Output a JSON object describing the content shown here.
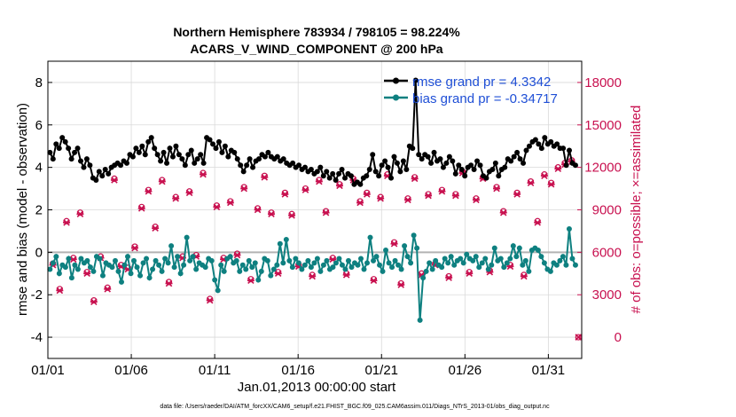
{
  "chart_data": {
    "type": "line",
    "title": "Northern Hemisphere 783934 / 798105 = 98.224%",
    "subtitle": "ACARS_V_WIND_COMPONENT @ 200 hPa",
    "xlabel": "Jan.01,2013 00:00:00 start",
    "ylabel": "rmse and bias (model - observation)",
    "y2label": "# of obs: o=possible; ×=assimilated",
    "footnote": "data file: /Users/raeder/DAI/ATM_forcXX/CAM6_setup/f.e21.FHIST_BGC.f09_025.CAM6assim.011/Diags_NTrS_2013-01/obs_diag_output.nc",
    "xlim": [
      0,
      32
    ],
    "ylim": [
      -5,
      9
    ],
    "y2lim": [
      -1500,
      19500
    ],
    "x_ticks": [
      0,
      5,
      10,
      15,
      20,
      25,
      30
    ],
    "x_tick_labels": [
      "01/01",
      "01/06",
      "01/11",
      "01/16",
      "01/21",
      "01/26",
      "01/31"
    ],
    "y_ticks": [
      -4,
      -2,
      0,
      2,
      4,
      6,
      8
    ],
    "y_tick_labels": [
      "-4",
      "-2",
      "0",
      "2",
      "4",
      "6",
      "8"
    ],
    "y2_ticks": [
      0,
      3000,
      6000,
      9000,
      12000,
      15000,
      18000
    ],
    "y2_tick_labels": [
      "0",
      "3000",
      "6000",
      "9000",
      "12000",
      "15000",
      "18000"
    ],
    "grid": true,
    "legend_position": "top-right",
    "colors": {
      "rmse": "#000000",
      "bias": "#0e8080",
      "obs": "#c8104f",
      "zero_line": "#b3b3b3",
      "grid": "#d9d9d9",
      "legend_text": "#1f4fd6"
    },
    "step_days": 0.25,
    "series": [
      {
        "name": "rmse grand pr = 4.3342",
        "axis": "left",
        "values": [
          4.7,
          4.4,
          5.1,
          4.9,
          5.4,
          5.2,
          4.9,
          4.4,
          4.7,
          4.9,
          4.3,
          4.0,
          4.4,
          4.1,
          3.5,
          3.4,
          3.8,
          3.6,
          3.9,
          3.7,
          4.0,
          4.1,
          4.2,
          4.1,
          4.3,
          4.2,
          4.6,
          4.5,
          4.9,
          4.7,
          5.0,
          4.6,
          5.2,
          5.4,
          4.9,
          4.6,
          4.3,
          4.7,
          4.2,
          4.9,
          4.5,
          5.0,
          4.6,
          4.4,
          4.1,
          4.6,
          4.8,
          4.2,
          4.4,
          4.6,
          4.2,
          5.4,
          5.3,
          5.1,
          4.9,
          5.2,
          4.7,
          5.0,
          4.5,
          4.8,
          4.7,
          4.4,
          4.1,
          3.8,
          4.1,
          4.4,
          4.0,
          4.3,
          4.4,
          4.6,
          4.5,
          4.7,
          4.5,
          4.4,
          4.5,
          4.3,
          4.4,
          4.2,
          4.1,
          4.2,
          4.0,
          4.1,
          3.9,
          4.0,
          3.8,
          3.9,
          3.7,
          3.8,
          4.0,
          3.6,
          3.8,
          3.5,
          3.7,
          3.4,
          3.7,
          3.9,
          3.5,
          3.7,
          3.6,
          3.2,
          3.3,
          3.2,
          3.5,
          3.6,
          3.9,
          4.6,
          3.8,
          3.6,
          4.1,
          4.3,
          4.0,
          3.5,
          4.5,
          4.2,
          3.8,
          4.3,
          3.9,
          5.0,
          4.9,
          8.1,
          4.6,
          4.4,
          4.6,
          4.5,
          4.2,
          4.7,
          4.3,
          4.4,
          4.0,
          4.2,
          4.5,
          4.3,
          3.7,
          4.1,
          3.9,
          3.6,
          4.0,
          4.1,
          3.9,
          4.3,
          4.1,
          3.6,
          3.5,
          3.8,
          3.9,
          4.2,
          3.6,
          3.9,
          4.0,
          4.4,
          4.3,
          4.5,
          4.7,
          4.4,
          4.2,
          4.8,
          5.0,
          5.2,
          5.3,
          5.1,
          4.9,
          5.4,
          5.1,
          5.2,
          5.0,
          5.1,
          4.9,
          4.9,
          4.1,
          4.8,
          4.2,
          4.1
        ]
      },
      {
        "name": "bias grand pr = -0.34717",
        "axis": "left",
        "values": [
          -0.8,
          -0.5,
          -0.2,
          -1.0,
          -0.6,
          -0.7,
          -0.3,
          -1.2,
          -0.6,
          -0.8,
          -0.3,
          -0.5,
          -0.4,
          -0.7,
          -0.9,
          -0.2,
          -0.3,
          -1.1,
          -0.5,
          -0.6,
          -0.7,
          -0.4,
          -0.9,
          -1.4,
          -0.6,
          -0.2,
          -1.0,
          -0.4,
          -0.7,
          -1.1,
          -0.5,
          -0.3,
          -1.2,
          -0.8,
          -0.4,
          -0.6,
          -0.9,
          -0.3,
          -0.5,
          0.3,
          -0.7,
          -0.2,
          -1.0,
          -0.6,
          0.7,
          -0.4,
          -0.2,
          -0.8,
          -0.5,
          -0.6,
          -0.7,
          -0.3,
          -0.4,
          -1.3,
          -1.8,
          -0.6,
          -0.9,
          -0.3,
          -0.2,
          -0.5,
          -0.4,
          -0.9,
          -0.6,
          -0.8,
          -0.4,
          -0.7,
          -0.5,
          -1.3,
          -0.9,
          -0.3,
          -0.4,
          -1.1,
          -0.8,
          -0.6,
          0.4,
          -0.5,
          0.6,
          -0.4,
          -0.7,
          -0.3,
          -0.5,
          -0.8,
          -0.6,
          -0.4,
          -0.7,
          -0.5,
          -0.3,
          -0.9,
          -0.6,
          -0.4,
          -0.8,
          -0.7,
          -0.5,
          -0.3,
          -0.6,
          -0.8,
          -0.4,
          -0.7,
          -0.5,
          -0.6,
          -0.3,
          -0.8,
          -0.5,
          0.7,
          -0.4,
          -0.2,
          -0.6,
          -0.9,
          0.1,
          -0.5,
          -0.7,
          -0.4,
          -0.6,
          -0.8,
          0.3,
          -0.2,
          -0.5,
          0.8,
          0.2,
          -3.2,
          -1.2,
          -0.9,
          -0.5,
          -0.8,
          -0.4,
          -0.6,
          -0.7,
          -0.3,
          -0.5,
          -0.2,
          -0.6,
          -0.4,
          -0.3,
          -0.5,
          -0.1,
          -0.3,
          -0.4,
          -0.2,
          -0.7,
          -0.5,
          -0.3,
          -0.8,
          -0.6,
          0.2,
          -0.4,
          -0.3,
          -0.7,
          -0.5,
          -0.3,
          0.3,
          -0.2,
          0.2,
          -0.6,
          -0.4,
          -0.9,
          0.1,
          0.2,
          0.1,
          -0.2,
          -0.5,
          -0.8,
          -0.9,
          -0.5,
          -0.6,
          -0.4,
          -0.2,
          -0.6,
          1.1,
          -0.3,
          -0.6
        ]
      },
      {
        "name": "obs possible",
        "axis": "right",
        "marker": "o",
        "values": [
          5200,
          3400,
          8200,
          5600,
          8800,
          4600,
          2600,
          5700,
          3500,
          11200,
          5100,
          4900,
          6400,
          9200,
          10400,
          7800,
          11100,
          3900,
          9900,
          5700,
          10300,
          5800,
          11600,
          2700,
          9300,
          5600,
          9600,
          5900,
          10600,
          4100,
          9100,
          11400,
          8800,
          4600,
          10200,
          8700,
          5100,
          10500,
          4400,
          11100,
          8900,
          5600,
          10800,
          4500,
          11200,
          9600,
          10200,
          4100,
          9900,
          11500,
          6700,
          3800,
          9800,
          11300,
          4500,
          10100,
          5200,
          10400,
          4300,
          10100,
          11700,
          4600,
          9800,
          11300,
          4700,
          10600,
          8900,
          5100,
          10200,
          4400,
          11000,
          8200,
          11500,
          10900,
          12000,
          12300,
          12500
        ]
      },
      {
        "name": "obs assimilated",
        "axis": "right",
        "marker": "x",
        "values": [
          5100,
          3300,
          8100,
          5500,
          8700,
          4500,
          2500,
          5600,
          3400,
          11100,
          5000,
          4800,
          6300,
          9100,
          10300,
          7700,
          11000,
          3800,
          9800,
          5600,
          10200,
          5700,
          11500,
          2600,
          9200,
          5500,
          9500,
          5800,
          10500,
          4000,
          9000,
          11300,
          8700,
          4500,
          10100,
          8600,
          5000,
          10400,
          4300,
          11000,
          8800,
          5500,
          10700,
          4400,
          11100,
          9500,
          10100,
          4000,
          9800,
          11400,
          6600,
          3700,
          9700,
          11200,
          4400,
          10000,
          5100,
          10300,
          4200,
          10000,
          11600,
          4500,
          9700,
          11200,
          4600,
          10500,
          8800,
          5000,
          10100,
          4300,
          10900,
          8100,
          11400,
          10800,
          11900,
          12200,
          12400
        ]
      }
    ],
    "final_obs_outlier": {
      "x": 31.8,
      "value": 0
    }
  }
}
